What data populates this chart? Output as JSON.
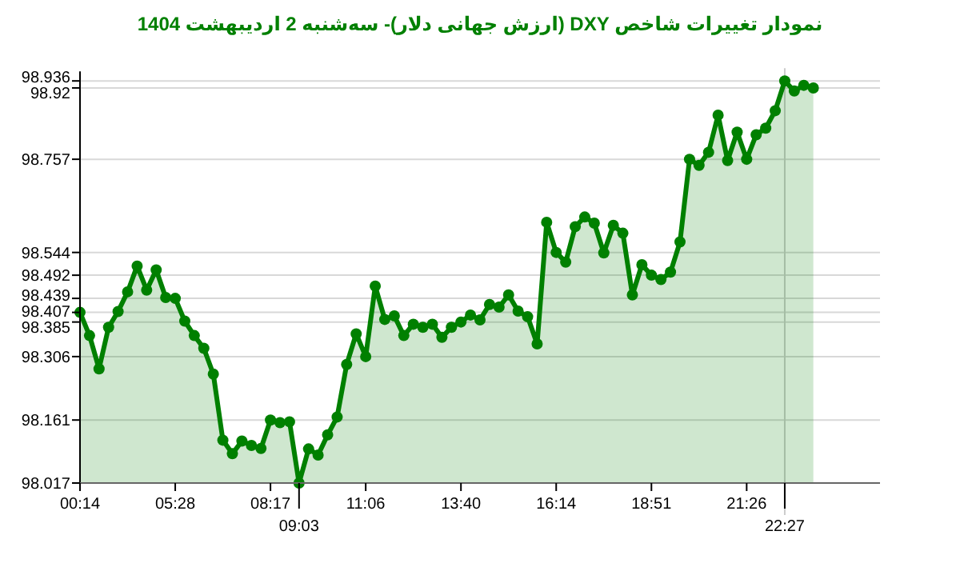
{
  "chart_data": {
    "type": "area",
    "title": "نمودار تغییرات شاخص DXY (ارزش جهانی دلار)- سه‌شنبه  2 اردیبهشت 1404",
    "categories": [
      "00:14",
      null,
      null,
      null,
      null,
      null,
      null,
      null,
      null,
      null,
      "05:28",
      null,
      null,
      null,
      null,
      null,
      null,
      null,
      null,
      null,
      "08:17",
      null,
      null,
      "09:03",
      null,
      null,
      null,
      null,
      null,
      null,
      "11:06",
      null,
      null,
      null,
      null,
      null,
      null,
      null,
      null,
      null,
      "13:40",
      null,
      null,
      null,
      null,
      null,
      null,
      null,
      null,
      null,
      "16:14",
      null,
      null,
      null,
      null,
      null,
      null,
      null,
      null,
      null,
      "18:51",
      null,
      null,
      null,
      null,
      null,
      null,
      null,
      null,
      null,
      "21:26",
      null,
      null,
      null,
      "22:27",
      null,
      null,
      null
    ],
    "series": [
      {
        "color": "#008000",
        "values": [
          98.407,
          98.354,
          98.278,
          98.373,
          98.409,
          98.454,
          98.513,
          98.458,
          98.504,
          98.441,
          98.439,
          98.387,
          98.354,
          98.325,
          98.266,
          98.115,
          98.084,
          98.113,
          98.103,
          98.096,
          98.161,
          98.155,
          98.157,
          98.017,
          98.095,
          98.081,
          98.127,
          98.168,
          98.288,
          98.358,
          98.306,
          98.467,
          98.391,
          98.399,
          98.354,
          98.38,
          98.373,
          98.38,
          98.35,
          98.373,
          98.385,
          98.401,
          98.39,
          98.425,
          98.419,
          98.447,
          98.41,
          98.397,
          98.335,
          98.613,
          98.544,
          98.522,
          98.603,
          98.625,
          98.611,
          98.543,
          98.606,
          98.588,
          98.447,
          98.516,
          98.492,
          98.482,
          98.499,
          98.568,
          98.757,
          98.743,
          98.773,
          98.858,
          98.754,
          98.819,
          98.757,
          98.813,
          98.828,
          98.868,
          98.936,
          98.913,
          98.926,
          98.92
        ]
      }
    ],
    "ylim": [
      98.017,
      98.936
    ],
    "yticks": [
      98.017,
      98.161,
      98.306,
      98.385,
      98.407,
      98.439,
      98.492,
      98.544,
      98.757,
      98.92,
      98.936
    ],
    "grid": "y",
    "marker": "circle",
    "line_style": "solid",
    "ref_lines": [
      {
        "axis": "x",
        "value": "22:27",
        "color": "#cccccc"
      }
    ]
  }
}
